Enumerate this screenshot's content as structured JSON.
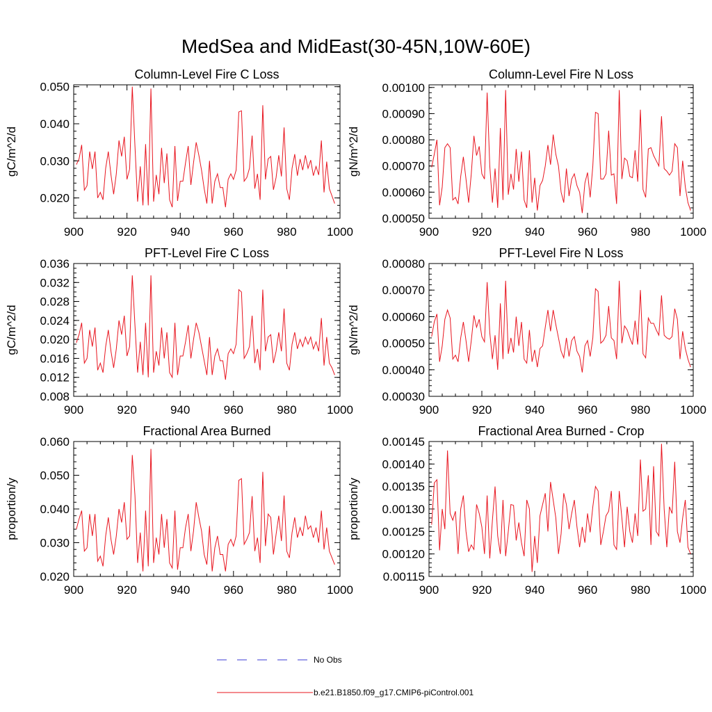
{
  "figure_title": "MedSea and MidEast(30-45N,10W-60E)",
  "legend": [
    {
      "label": "No Obs",
      "color": "#3a3ad6",
      "style": "dashed"
    },
    {
      "label": "b.e21.B1850.f09_g17.CMIP6-piControl.001",
      "color": "#e8141e",
      "style": "solid"
    }
  ],
  "chart_data": [
    {
      "type": "line",
      "title": "Column-Level Fire C Loss",
      "ylabel": "gC/m^2/d",
      "xlim": [
        900,
        1000
      ],
      "ylim": [
        0.0145,
        0.0505
      ],
      "xticks": [
        900,
        920,
        940,
        960,
        980,
        1000
      ],
      "xtick_labels": [
        "900",
        "920",
        "940",
        "960",
        "980",
        "1000"
      ],
      "yticks": [
        0.02,
        0.03,
        0.04,
        0.05
      ],
      "ytick_labels": [
        "0.020",
        "0.030",
        "0.040",
        "0.050"
      ],
      "yminor_step": 0.002,
      "x_start": 901,
      "series": [
        {
          "name": "b.e21.B1850.f09_g17.CMIP6-piControl.001",
          "color": "#e8141e",
          "values": [
            0.029,
            0.0305,
            0.0343,
            0.0221,
            0.0233,
            0.0325,
            0.0278,
            0.0325,
            0.02,
            0.0215,
            0.0195,
            0.028,
            0.0325,
            0.0262,
            0.021,
            0.0265,
            0.0355,
            0.0312,
            0.0365,
            0.025,
            0.0278,
            0.05,
            0.034,
            0.019,
            0.0285,
            0.018,
            0.0345,
            0.018,
            0.0495,
            0.019,
            0.0262,
            0.021,
            0.0335,
            0.024,
            0.032,
            0.0195,
            0.0175,
            0.034,
            0.0192,
            0.0245,
            0.0245,
            0.0295,
            0.034,
            0.0235,
            0.0295,
            0.035,
            0.0315,
            0.0275,
            0.0225,
            0.0185,
            0.03,
            0.0185,
            0.0245,
            0.0265,
            0.0228,
            0.0228,
            0.0175,
            0.025,
            0.0265,
            0.025,
            0.0275,
            0.0432,
            0.0435,
            0.0245,
            0.0255,
            0.028,
            0.0368,
            0.0225,
            0.0265,
            0.0195,
            0.045,
            0.025,
            0.0305,
            0.0312,
            0.0222,
            0.0255,
            0.0315,
            0.0258,
            0.039,
            0.0225,
            0.0195,
            0.028,
            0.0318,
            0.026,
            0.0305,
            0.0275,
            0.0315,
            0.028,
            0.0302,
            0.026,
            0.0285,
            0.0262,
            0.0355,
            0.0215,
            0.0298,
            0.0225,
            0.0205,
            0.0185
          ]
        }
      ]
    },
    {
      "type": "line",
      "title": "Column-Level Fire N Loss",
      "ylabel": "gN/m^2/d",
      "xlim": [
        900,
        1000
      ],
      "ylim": [
        0.0005,
        0.00101
      ],
      "xticks": [
        900,
        920,
        940,
        960,
        980,
        1000
      ],
      "xtick_labels": [
        "900",
        "920",
        "940",
        "960",
        "980",
        "1000"
      ],
      "yticks": [
        0.0005,
        0.0006,
        0.0007,
        0.0008,
        0.0009,
        0.001
      ],
      "ytick_labels": [
        "0.00050",
        "0.00060",
        "0.00070",
        "0.00080",
        "0.00090",
        "0.00100"
      ],
      "yminor_step": 2e-05,
      "x_start": 901,
      "series": [
        {
          "name": "b.e21.B1850.f09_g17.CMIP6-piControl.001",
          "color": "#e8141e",
          "values": [
            0.000695,
            0.000745,
            0.0008,
            0.00055,
            0.00062,
            0.00077,
            0.000785,
            0.00077,
            0.00057,
            0.00058,
            0.000555,
            0.00066,
            0.000735,
            0.00065,
            0.00056,
            0.00067,
            0.000815,
            0.00074,
            0.000775,
            0.00067,
            0.00065,
            0.00098,
            0.0007,
            0.00056,
            0.00069,
            0.00054,
            0.000845,
            0.00057,
            0.00099,
            0.00059,
            0.00067,
            0.00061,
            0.000765,
            0.00064,
            0.000755,
            0.00057,
            0.00054,
            0.00076,
            0.00056,
            0.000655,
            0.00053,
            0.000625,
            0.000645,
            0.0007,
            0.00078,
            0.000705,
            0.00082,
            0.000745,
            0.0007,
            0.0006,
            0.00056,
            0.00069,
            0.000585,
            0.00065,
            0.00067,
            0.000625,
            0.0006,
            0.00052,
            0.000635,
            0.000675,
            0.00058,
            0.0007,
            0.000905,
            0.0009,
            0.00065,
            0.00065,
            0.00067,
            0.000835,
            0.000665,
            0.00067,
            0.000555,
            0.00099,
            0.00065,
            0.00073,
            0.00072,
            0.00066,
            0.000655,
            0.00076,
            0.00064,
            0.000915,
            0.00061,
            0.00058,
            0.000765,
            0.00077,
            0.00074,
            0.00072,
            0.0007,
            0.00089,
            0.00069,
            0.00068,
            0.000665,
            0.00068,
            0.000785,
            0.00077,
            0.000585,
            0.00072,
            0.00062,
            0.00056,
            0.00053
          ]
        }
      ]
    },
    {
      "type": "line",
      "title": "PFT-Level Fire C Loss",
      "ylabel": "gC/m^2/d",
      "xlim": [
        900,
        1000
      ],
      "ylim": [
        0.008,
        0.036
      ],
      "xticks": [
        900,
        920,
        940,
        960,
        980,
        1000
      ],
      "xtick_labels": [
        "900",
        "920",
        "940",
        "960",
        "980",
        "1000"
      ],
      "yticks": [
        0.008,
        0.012,
        0.016,
        0.02,
        0.024,
        0.028,
        0.032,
        0.036
      ],
      "ytick_labels": [
        "0.008",
        "0.012",
        "0.016",
        "0.020",
        "0.024",
        "0.028",
        "0.032",
        "0.036"
      ],
      "yminor_step": 0.001,
      "x_start": 901,
      "series": [
        {
          "name": "b.e21.B1850.f09_g17.CMIP6-piControl.001",
          "color": "#e8141e",
          "values": [
            0.0193,
            0.021,
            0.0235,
            0.015,
            0.016,
            0.022,
            0.0185,
            0.0225,
            0.0135,
            0.015,
            0.013,
            0.0185,
            0.022,
            0.0175,
            0.014,
            0.018,
            0.024,
            0.021,
            0.025,
            0.0165,
            0.0185,
            0.0335,
            0.023,
            0.013,
            0.0195,
            0.0125,
            0.0235,
            0.012,
            0.0335,
            0.013,
            0.0175,
            0.0145,
            0.0225,
            0.016,
            0.0215,
            0.013,
            0.012,
            0.0235,
            0.0125,
            0.0165,
            0.0165,
            0.0195,
            0.023,
            0.016,
            0.02,
            0.0235,
            0.0215,
            0.0185,
            0.0155,
            0.0125,
            0.0205,
            0.0125,
            0.0165,
            0.018,
            0.0155,
            0.0155,
            0.0115,
            0.017,
            0.018,
            0.017,
            0.019,
            0.0305,
            0.03,
            0.016,
            0.017,
            0.0185,
            0.025,
            0.015,
            0.018,
            0.0135,
            0.0305,
            0.0175,
            0.0205,
            0.021,
            0.015,
            0.0175,
            0.0215,
            0.0175,
            0.0265,
            0.015,
            0.0135,
            0.019,
            0.0215,
            0.018,
            0.02,
            0.0185,
            0.0205,
            0.019,
            0.0205,
            0.018,
            0.0195,
            0.0175,
            0.0245,
            0.0145,
            0.0205,
            0.015,
            0.014,
            0.0125
          ]
        }
      ]
    },
    {
      "type": "line",
      "title": "PFT-Level Fire N Loss",
      "ylabel": "gN/m^2/d",
      "xlim": [
        900,
        1000
      ],
      "ylim": [
        0.0003,
        0.0008
      ],
      "xticks": [
        900,
        920,
        940,
        960,
        980,
        1000
      ],
      "xtick_labels": [
        "900",
        "920",
        "940",
        "960",
        "980",
        "1000"
      ],
      "yticks": [
        0.0003,
        0.0004,
        0.0005,
        0.0006,
        0.0007,
        0.0008
      ],
      "ytick_labels": [
        "0.00030",
        "0.00040",
        "0.00050",
        "0.00060",
        "0.00070",
        "0.00080"
      ],
      "yminor_step": 2e-05,
      "x_start": 901,
      "series": [
        {
          "name": "b.e21.B1850.f09_g17.CMIP6-piControl.001",
          "color": "#e8141e",
          "values": [
            0.000525,
            0.00058,
            0.00061,
            0.00043,
            0.00049,
            0.00059,
            0.000625,
            0.000595,
            0.00044,
            0.000455,
            0.00043,
            0.00052,
            0.00058,
            0.00051,
            0.00043,
            0.00051,
            0.000605,
            0.00056,
            0.00059,
            0.000525,
            0.000505,
            0.00073,
            0.00054,
            0.00044,
            0.00053,
            0.0004,
            0.00065,
            0.00044,
            0.000735,
            0.00046,
            0.00052,
            0.000465,
            0.0006,
            0.00049,
            0.00058,
            0.00044,
            0.000425,
            0.00055,
            0.00043,
            0.000475,
            0.00041,
            0.00048,
            0.00049,
            0.00056,
            0.000625,
            0.000545,
            0.000625,
            0.00057,
            0.00052,
            0.00047,
            0.000445,
            0.00052,
            0.00045,
            0.00051,
            0.000525,
            0.00047,
            0.00045,
            0.00039,
            0.00049,
            0.00051,
            0.00045,
            0.00052,
            0.000705,
            0.000695,
            0.0005,
            0.00051,
            0.00053,
            0.00064,
            0.00052,
            0.00051,
            0.00044,
            0.000735,
            0.0005,
            0.000565,
            0.00055,
            0.00052,
            0.000495,
            0.000585,
            0.000495,
            0.0007,
            0.00046,
            0.000445,
            0.000595,
            0.000575,
            0.000575,
            0.00055,
            0.00053,
            0.00068,
            0.00053,
            0.00052,
            0.000515,
            0.000525,
            0.00063,
            0.00059,
            0.00044,
            0.000545,
            0.00048,
            0.00044,
            0.00041
          ]
        }
      ]
    },
    {
      "type": "line",
      "title": "Fractional Area Burned",
      "ylabel": "proportion/y",
      "xlim": [
        900,
        1000
      ],
      "ylim": [
        0.02,
        0.06
      ],
      "xticks": [
        900,
        920,
        940,
        960,
        980,
        1000
      ],
      "xtick_labels": [
        "900",
        "920",
        "940",
        "960",
        "980",
        "1000"
      ],
      "yticks": [
        0.02,
        0.03,
        0.04,
        0.05,
        0.06
      ],
      "ytick_labels": [
        "0.020",
        "0.030",
        "0.040",
        "0.050",
        "0.060"
      ],
      "yminor_step": 0.002,
      "x_start": 901,
      "series": [
        {
          "name": "b.e21.B1850.f09_g17.CMIP6-piControl.001",
          "color": "#e8141e",
          "values": [
            0.034,
            0.037,
            0.0395,
            0.0275,
            0.0285,
            0.0385,
            0.032,
            0.0385,
            0.0245,
            0.026,
            0.023,
            0.032,
            0.0375,
            0.031,
            0.0265,
            0.032,
            0.04,
            0.036,
            0.042,
            0.031,
            0.032,
            0.056,
            0.044,
            0.024,
            0.033,
            0.0215,
            0.0395,
            0.023,
            0.0578,
            0.024,
            0.0315,
            0.0265,
            0.0385,
            0.0285,
            0.037,
            0.024,
            0.0225,
            0.0395,
            0.022,
            0.0285,
            0.0285,
            0.0345,
            0.0385,
            0.0275,
            0.0335,
            0.042,
            0.0375,
            0.0335,
            0.0265,
            0.0235,
            0.035,
            0.0215,
            0.0285,
            0.032,
            0.0265,
            0.0265,
            0.0215,
            0.0295,
            0.031,
            0.029,
            0.032,
            0.0485,
            0.049,
            0.0295,
            0.031,
            0.033,
            0.0438,
            0.0275,
            0.0315,
            0.024,
            0.051,
            0.029,
            0.0385,
            0.0375,
            0.0265,
            0.0325,
            0.038,
            0.0305,
            0.044,
            0.0275,
            0.0255,
            0.033,
            0.0375,
            0.0315,
            0.0345,
            0.032,
            0.038,
            0.034,
            0.035,
            0.0315,
            0.0345,
            0.03,
            0.0395,
            0.028,
            0.0345,
            0.0275,
            0.0255,
            0.0235
          ]
        }
      ]
    },
    {
      "type": "line",
      "title": "Fractional Area Burned - Crop",
      "ylabel": "proportion/y",
      "xlim": [
        900,
        1000
      ],
      "ylim": [
        0.00115,
        0.00145
      ],
      "xticks": [
        900,
        920,
        940,
        960,
        980,
        1000
      ],
      "xtick_labels": [
        "900",
        "920",
        "940",
        "960",
        "980",
        "1000"
      ],
      "yticks": [
        0.00115,
        0.0012,
        0.00125,
        0.0013,
        0.00135,
        0.0014,
        0.00145
      ],
      "ytick_labels": [
        "0.00115",
        "0.00120",
        "0.00125",
        "0.00130",
        "0.00135",
        "0.00140",
        "0.00145"
      ],
      "yminor_step": 1e-05,
      "x_start": 901,
      "series": [
        {
          "name": "b.e21.B1850.f09_g17.CMIP6-piControl.001",
          "color": "#e8141e",
          "values": [
            0.001265,
            0.001358,
            0.001365,
            0.001208,
            0.0013,
            0.001255,
            0.00143,
            0.00129,
            0.001275,
            0.001295,
            0.0012,
            0.0013,
            0.00133,
            0.00125,
            0.001205,
            0.00122,
            0.00121,
            0.00131,
            0.00129,
            0.00126,
            0.0012,
            0.00133,
            0.00119,
            0.001275,
            0.00135,
            0.00124,
            0.0012,
            0.00132,
            0.001195,
            0.00125,
            0.00131,
            0.001308,
            0.00123,
            0.00127,
            0.001225,
            0.001195,
            0.00132,
            0.0013,
            0.00116,
            0.00124,
            0.00118,
            0.001285,
            0.00131,
            0.001335,
            0.00125,
            0.00136,
            0.00132,
            0.00128,
            0.0012,
            0.001245,
            0.001335,
            0.00131,
            0.001255,
            0.00129,
            0.00132,
            0.00126,
            0.001215,
            0.00126,
            0.001225,
            0.00129,
            0.001248,
            0.001305,
            0.00135,
            0.00134,
            0.00122,
            0.00125,
            0.001285,
            0.001295,
            0.00134,
            0.00122,
            0.00121,
            0.00134,
            0.00128,
            0.001215,
            0.001305,
            0.00125,
            0.001225,
            0.00129,
            0.00124,
            0.00141,
            0.001295,
            0.0013,
            0.001375,
            0.00122,
            0.001395,
            0.00125,
            0.00124,
            0.001445,
            0.0013,
            0.001215,
            0.001305,
            0.00129,
            0.001405,
            0.00125,
            0.001225,
            0.00128,
            0.00132,
            0.001215,
            0.0012
          ]
        }
      ]
    }
  ]
}
